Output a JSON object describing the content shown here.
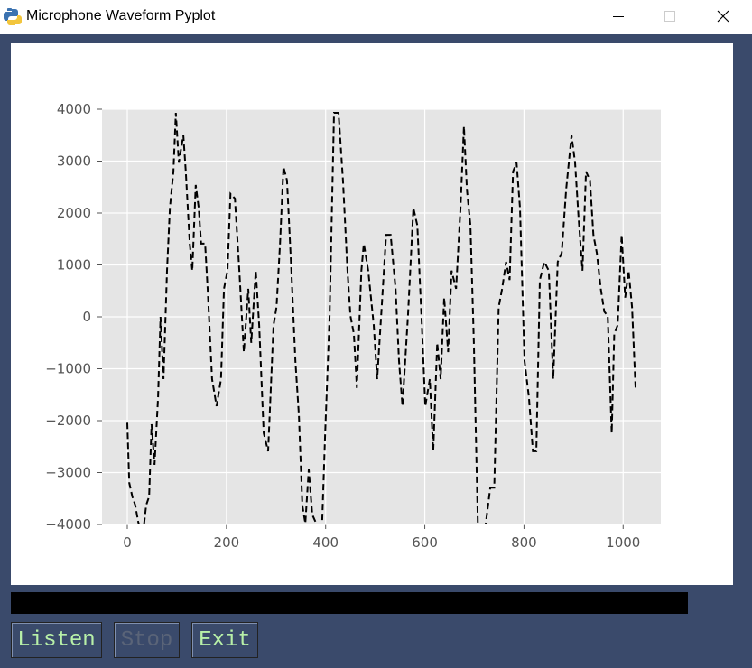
{
  "window": {
    "title": "Microphone Waveform Pyplot"
  },
  "buttons": [
    {
      "label": "Listen",
      "enabled": true
    },
    {
      "label": "Stop",
      "enabled": false
    },
    {
      "label": "Exit",
      "enabled": true
    }
  ],
  "chart_data": {
    "type": "line",
    "x": [
      0,
      4,
      10,
      16,
      22,
      31,
      38,
      44,
      49,
      55,
      62,
      67,
      73,
      80,
      86,
      93,
      98,
      104,
      113,
      118,
      126,
      131,
      138,
      144,
      149,
      157,
      162,
      171,
      180,
      189,
      195,
      202,
      208,
      217,
      226,
      235,
      244,
      250,
      259,
      266,
      275,
      284,
      295,
      301,
      308,
      315,
      322,
      330,
      339,
      346,
      353,
      359,
      366,
      373,
      381,
      392,
      399,
      408,
      417,
      426,
      435,
      444,
      450,
      457,
      463,
      472,
      477,
      486,
      497,
      504,
      513,
      522,
      531,
      541,
      548,
      555,
      566,
      577,
      585,
      594,
      601,
      610,
      617,
      625,
      632,
      639,
      647,
      654,
      663,
      672,
      679,
      685,
      692,
      699,
      707,
      714,
      723,
      732,
      740,
      749,
      756,
      764,
      771,
      778,
      785,
      792,
      801,
      810,
      818,
      825,
      832,
      841,
      850,
      859,
      868,
      876,
      885,
      896,
      903,
      910,
      918,
      925,
      933,
      940,
      947,
      955,
      962,
      969,
      977,
      982,
      989,
      997,
      1004,
      1011,
      1018,
      1025
    ],
    "series": [
      {
        "color": "#000000",
        "values": [
          -2040,
          -3200,
          -3460,
          -3630,
          -3950,
          -4240,
          -3630,
          -3460,
          -2070,
          -2850,
          -1550,
          0,
          -1200,
          890,
          2100,
          2800,
          3930,
          2970,
          3500,
          2800,
          1410,
          890,
          2540,
          2100,
          1410,
          1410,
          540,
          -1200,
          -1720,
          -1200,
          540,
          890,
          2370,
          2280,
          890,
          -680,
          540,
          -500,
          890,
          -160,
          -2240,
          -2590,
          -160,
          190,
          1410,
          2890,
          2630,
          1060,
          -850,
          -1900,
          -3630,
          -3980,
          -2940,
          -3810,
          -3980,
          -4240,
          -2240,
          20,
          3930,
          3930,
          2630,
          890,
          20,
          -330,
          -1370,
          890,
          1410,
          890,
          -160,
          -1200,
          190,
          1580,
          1580,
          540,
          -850,
          -1720,
          20,
          2100,
          1760,
          -160,
          -1720,
          -1200,
          -2590,
          -500,
          -1200,
          370,
          -680,
          890,
          540,
          2100,
          3670,
          2450,
          1760,
          -500,
          -3980,
          -4240,
          -3980,
          -3290,
          -3290,
          190,
          540,
          1060,
          710,
          2800,
          2970,
          2100,
          -850,
          -1550,
          -2590,
          -2590,
          710,
          1060,
          890,
          -1200,
          1060,
          1230,
          2450,
          3500,
          2970,
          1930,
          890,
          2800,
          2630,
          1580,
          1230,
          540,
          100,
          20,
          -2240,
          -330,
          -160,
          1580,
          370,
          890,
          190,
          -1370
        ]
      }
    ],
    "xlim": [
      -51,
      1076
    ],
    "ylim": [
      -4000,
      4000
    ],
    "xticks": [
      0,
      200,
      400,
      600,
      800,
      1000
    ],
    "yticks": [
      {
        "value": -4000,
        "label": "−4000"
      },
      {
        "value": -3000,
        "label": "−3000"
      },
      {
        "value": -2000,
        "label": "−2000"
      },
      {
        "value": -1000,
        "label": "−1000"
      },
      0,
      1000,
      2000,
      3000,
      4000
    ],
    "grid": true,
    "line_style": "dashed"
  }
}
